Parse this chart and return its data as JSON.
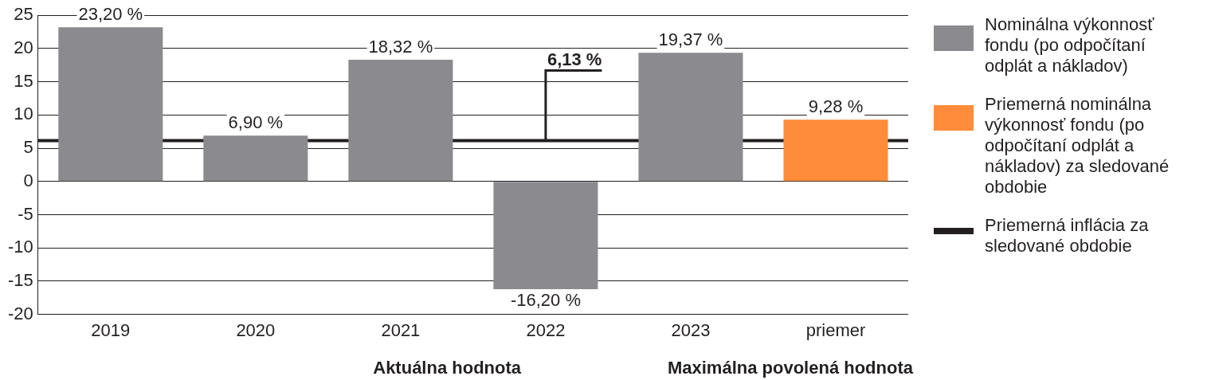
{
  "chart_data": {
    "type": "bar",
    "categories": [
      "2019",
      "2020",
      "2021",
      "2022",
      "2023",
      "priemer"
    ],
    "series": [
      {
        "name": "Nominálna výkonnosť fondu (po odpočítaní odplát a nákladov)",
        "color": "#8b8a8f",
        "values": [
          23.2,
          6.9,
          18.32,
          -16.2,
          19.37,
          null
        ],
        "value_labels": [
          "23,20 %",
          "6,90 %",
          "18,32 %",
          "-16,20 %",
          "19,37 %",
          null
        ]
      },
      {
        "name": "Priemerná nominálna výkonnosť fondu (po odpočítaní odplát a nákladov) za sledované obdobie",
        "color": "#ff8c3a",
        "values": [
          null,
          null,
          null,
          null,
          null,
          9.28
        ],
        "value_labels": [
          null,
          null,
          null,
          null,
          null,
          "9,28 %"
        ]
      }
    ],
    "ylim": [
      -20,
      25
    ],
    "yticks": [
      -20,
      -15,
      -10,
      -5,
      0,
      5,
      10,
      15,
      20,
      25
    ],
    "grid": "y",
    "legend": "right",
    "ref_lines": [
      {
        "axis": "y",
        "value": 6.13,
        "label": "Priemerná inflácia za sledované obdobie",
        "color": "#231f20"
      }
    ],
    "annotations": [
      {
        "text": "6,13 %",
        "x": "2022",
        "y": 6.13
      },
      "Aktuálna hodnota",
      "Maximálna povolená hodnota"
    ]
  }
}
